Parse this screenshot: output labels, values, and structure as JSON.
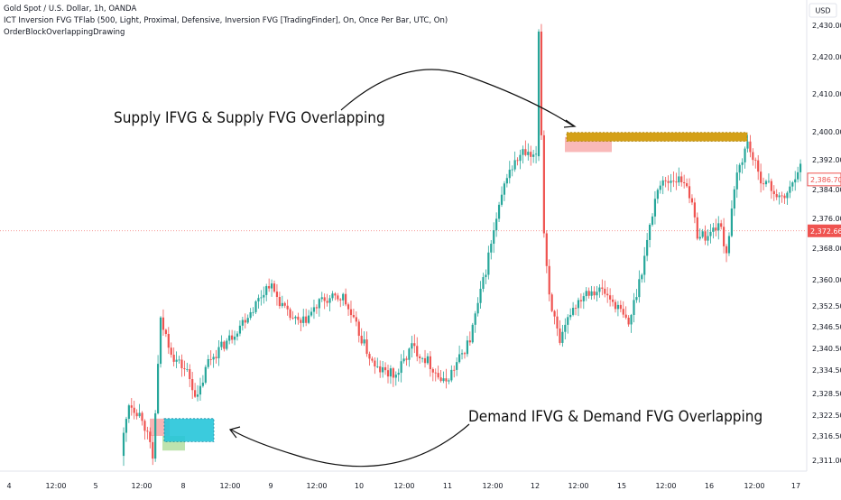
{
  "header": {
    "title": "Gold Spot / U.S. Dollar, 1h, OANDA",
    "indicator": "ICT Inversion FVG TFlab (500, Light, Proximal, Defensive, Inversion FVG [TradingFinder], On, Once Per Bar, UTC, On)",
    "indicator2": "OrderBlockOverlappingDrawing"
  },
  "currency_label": "USD",
  "chart_data": {
    "type": "candlestick",
    "x_ticks": [
      "4",
      "12:00",
      "5",
      "12:00",
      "8",
      "12:00",
      "9",
      "12:00",
      "10",
      "12:00",
      "11",
      "12:00",
      "12",
      "12:00",
      "15",
      "12:00",
      "16",
      "12:00",
      "17"
    ],
    "y_ticks": [
      2311.0,
      2316.5,
      2322.5,
      2328.5,
      2334.5,
      2340.5,
      2346.5,
      2352.5,
      2360.0,
      2368.0,
      2376.0,
      2384.0,
      2392.0,
      2400.0,
      2410.0,
      2420.0,
      2430.0
    ],
    "ylim": [
      2308,
      2436
    ],
    "current_price": "2,386.700",
    "horizontal_line_price": "2,372.665",
    "colors": {
      "up": "#26a69a",
      "down": "#ef5350",
      "supply_zone": "#d4a017",
      "demand_zone": "#26c6da",
      "supply_fvg": "#f7a1a1",
      "demand_fvg": "#b7e0a5"
    },
    "annotations": [
      {
        "text": "Supply IFVG & Supply FVG Overlapping"
      },
      {
        "text": "Demand IFVG & Demand FVG Overlapping"
      }
    ]
  }
}
